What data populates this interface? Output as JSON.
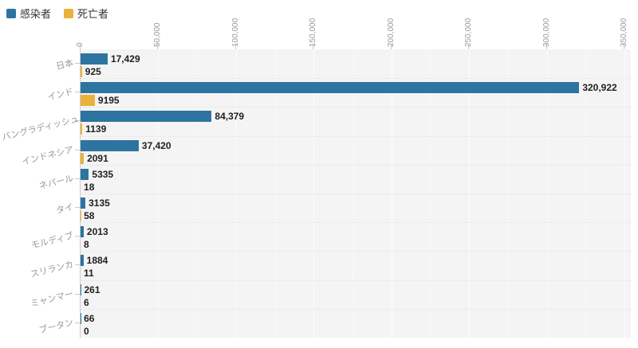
{
  "legend": {
    "items": [
      {
        "label": "感染者",
        "color": "#2d74a1"
      },
      {
        "label": "死亡者",
        "color": "#e9b23c"
      }
    ]
  },
  "chart_data": {
    "type": "bar",
    "orientation": "horizontal",
    "title": "",
    "categories": [
      "日本",
      "インド",
      "バングラディッシュ",
      "インドネシア",
      "ネパール",
      "タイ",
      "モルディブ",
      "スリランカ",
      "ミャンマー",
      "ブータン"
    ],
    "series": [
      {
        "name": "感染者",
        "color": "#2d74a1",
        "values": [
          17429,
          320922,
          84379,
          37420,
          5335,
          3135,
          2013,
          1884,
          261,
          66
        ],
        "labels": [
          "17,429",
          "320,922",
          "84,379",
          "37,420",
          "5335",
          "3135",
          "2013",
          "1884",
          "261",
          "66"
        ]
      },
      {
        "name": "死亡者",
        "color": "#e9b23c",
        "values": [
          925,
          9195,
          1139,
          2091,
          18,
          58,
          8,
          11,
          6,
          0
        ],
        "labels": [
          "925",
          "9195",
          "1139",
          "2091",
          "18",
          "58",
          "8",
          "11",
          "6",
          "0"
        ]
      }
    ],
    "x_axis": {
      "max": 350000,
      "tick_step": 50000,
      "minor_step": 25000,
      "ticks": [
        0,
        50000,
        100000,
        150000,
        200000,
        250000,
        300000,
        350000
      ],
      "tick_labels": [
        "0",
        "50,000",
        "100,000",
        "150,000",
        "200,000",
        "250,000",
        "300,000",
        "350,000"
      ],
      "label_rotation": -90
    },
    "y_axis": {
      "label_rotation": -14
    },
    "grid": true,
    "legend_position": "top-left",
    "colors": {
      "plot_background": "#f4f4f4",
      "axis_line": "#cccccc",
      "tick_label": "#999999",
      "value_label": "#1f1f1f"
    }
  }
}
